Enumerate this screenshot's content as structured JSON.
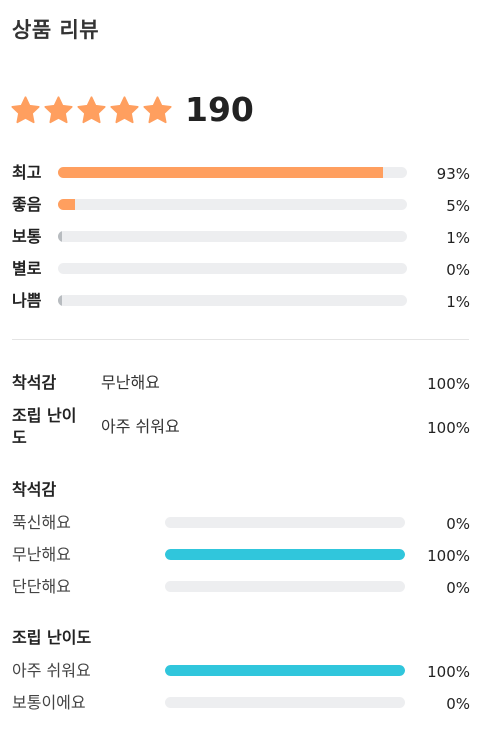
{
  "title": "상품 리뷰",
  "rating": {
    "stars": 5,
    "star_color": "#ff9f5f",
    "review_count": "190"
  },
  "distribution": [
    {
      "label": "최고",
      "percent_text": "93%",
      "value": 93,
      "color": "#ff9f5f"
    },
    {
      "label": "좋음",
      "percent_text": "5%",
      "value": 5,
      "color": "#ff9f5f"
    },
    {
      "label": "보통",
      "percent_text": "1%",
      "value": 1,
      "color": "#b8bcc0"
    },
    {
      "label": "별로",
      "percent_text": "0%",
      "value": 0,
      "color": "#b8bcc0"
    },
    {
      "label": "나쁨",
      "percent_text": "1%",
      "value": 1,
      "color": "#b8bcc0"
    }
  ],
  "summary": [
    {
      "label": "착석감",
      "value": "무난해요",
      "percent_text": "100%"
    },
    {
      "label": "조립 난이도",
      "value": "아주 쉬워요",
      "percent_text": "100%"
    }
  ],
  "sections": [
    {
      "title": "착석감",
      "options": [
        {
          "label": "푹신해요",
          "percent_text": "0%",
          "value": 0
        },
        {
          "label": "무난해요",
          "percent_text": "100%",
          "value": 100
        },
        {
          "label": "단단해요",
          "percent_text": "0%",
          "value": 0
        }
      ]
    },
    {
      "title": "조립 난이도",
      "options": [
        {
          "label": "아주 쉬워요",
          "percent_text": "100%",
          "value": 100
        },
        {
          "label": "보통이에요",
          "percent_text": "0%",
          "value": 0
        }
      ]
    }
  ],
  "bar_accent_color": "#30c6dc"
}
